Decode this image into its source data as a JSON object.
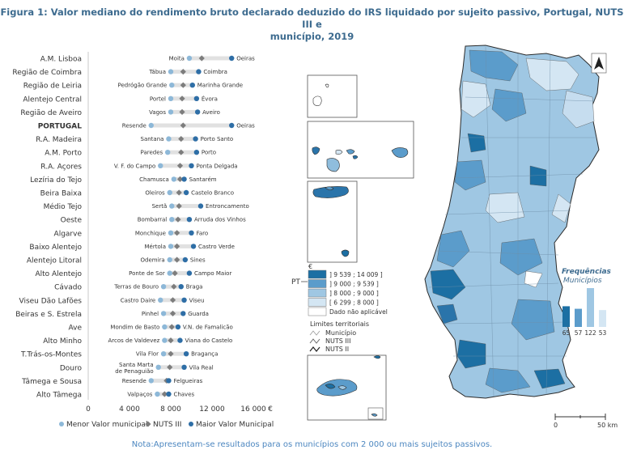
{
  "title": {
    "line1": "Figura 1: Valor mediano do rendimento bruto declarado deduzido do IRS liquidado por sujeito passivo, Portugal, NUTS III e",
    "line2": "município, 2019"
  },
  "note": "Nota:Apresentam-se resultados para os municípios com 2 000 ou mais sujeitos passivos.",
  "chart_data": {
    "type": "scatter",
    "xlim": [
      0,
      16000
    ],
    "xticks": [
      "0",
      "4 000",
      "8 000",
      "12 000",
      "16 000"
    ],
    "x_unit": "€",
    "legend": [
      {
        "name": "Menor Valor municipal",
        "color": "#8db8d8",
        "marker": "circle"
      },
      {
        "name": "NUTS III",
        "color": "#7d7d7d",
        "marker": "diamond"
      },
      {
        "name": "Maior Valor Municipal",
        "color": "#2e6ea6",
        "marker": "circle"
      }
    ],
    "rows": [
      {
        "region": "A.M. Lisboa",
        "min_name": "Moita",
        "min": 9800,
        "nuts": 11000,
        "max": 13900,
        "max_name": "Oeiras",
        "bold": false
      },
      {
        "region": "Região de Coimbra",
        "min_name": "Tábua",
        "min": 8000,
        "nuts": 9200,
        "max": 10700,
        "max_name": "Coimbra",
        "bold": false
      },
      {
        "region": "Região de Leiria",
        "min_name": "Pedrógão Grande",
        "min": 8100,
        "nuts": 9200,
        "max": 10100,
        "max_name": "Marinha Grande",
        "bold": false
      },
      {
        "region": "Alentejo Central",
        "min_name": "Portel",
        "min": 8000,
        "nuts": 9100,
        "max": 10500,
        "max_name": "Évora",
        "bold": false
      },
      {
        "region": "Região de Aveiro",
        "min_name": "Vagos",
        "min": 8000,
        "nuts": 9100,
        "max": 10600,
        "max_name": "Aveiro",
        "bold": false
      },
      {
        "region": "PORTUGAL",
        "min_name": "Resende",
        "min": 6100,
        "nuts": 9200,
        "max": 13900,
        "max_name": "Oeiras",
        "bold": true
      },
      {
        "region": "R.A. Madeira",
        "min_name": "Santana",
        "min": 7800,
        "nuts": 9000,
        "max": 10400,
        "max_name": "Porto Santo",
        "bold": false
      },
      {
        "region": "A.M. Porto",
        "min_name": "Paredes",
        "min": 7700,
        "nuts": 9000,
        "max": 10500,
        "max_name": "Porto",
        "bold": false
      },
      {
        "region": "R.A. Açores",
        "min_name": "V. F. do Campo",
        "min": 7000,
        "nuts": 8900,
        "max": 10000,
        "max_name": "Ponta Delgada",
        "bold": false
      },
      {
        "region": "Lezíria do Tejo",
        "min_name": "Chamusca",
        "min": 8300,
        "nuts": 8900,
        "max": 9300,
        "max_name": "Santarém",
        "bold": false
      },
      {
        "region": "Beira Baixa",
        "min_name": "Oleiros",
        "min": 7900,
        "nuts": 8800,
        "max": 9500,
        "max_name": "Castelo Branco",
        "bold": false
      },
      {
        "region": "Médio Tejo",
        "min_name": "Sertã",
        "min": 8100,
        "nuts": 8800,
        "max": 10900,
        "max_name": "Entroncamento",
        "bold": false
      },
      {
        "region": "Oeste",
        "min_name": "Bombarral",
        "min": 8100,
        "nuts": 8700,
        "max": 9800,
        "max_name": "Arruda dos Vinhos",
        "bold": false
      },
      {
        "region": "Algarve",
        "min_name": "Monchique",
        "min": 8000,
        "nuts": 8600,
        "max": 10000,
        "max_name": "Faro",
        "bold": false
      },
      {
        "region": "Baixo Alentejo",
        "min_name": "Mértola",
        "min": 8000,
        "nuts": 8600,
        "max": 10200,
        "max_name": "Castro Verde",
        "bold": false
      },
      {
        "region": "Alentejo Litoral",
        "min_name": "Odemira",
        "min": 7900,
        "nuts": 8600,
        "max": 9400,
        "max_name": "Sines",
        "bold": false
      },
      {
        "region": "Alto Alentejo",
        "min_name": "Ponte de Sor",
        "min": 7900,
        "nuts": 8400,
        "max": 9800,
        "max_name": "Campo Maior",
        "bold": false
      },
      {
        "region": "Cávado",
        "min_name": "Terras de Bouro",
        "min": 7300,
        "nuts": 8300,
        "max": 9000,
        "max_name": "Braga",
        "bold": false
      },
      {
        "region": "Viseu Dão Lafões",
        "min_name": "Castro Daire",
        "min": 7000,
        "nuts": 8200,
        "max": 9300,
        "max_name": "Viseu",
        "bold": false
      },
      {
        "region": "Beiras e S. Estrela",
        "min_name": "Pinhel",
        "min": 7300,
        "nuts": 8200,
        "max": 9200,
        "max_name": "Guarda",
        "bold": false
      },
      {
        "region": "Ave",
        "min_name": "Mondim de Basto",
        "min": 7400,
        "nuts": 8100,
        "max": 8700,
        "max_name": "V.N. de Famalicão",
        "bold": false
      },
      {
        "region": "Alto Minho",
        "min_name": "Arcos de Valdevez",
        "min": 7400,
        "nuts": 8000,
        "max": 8900,
        "max_name": "Viana do Castelo",
        "bold": false
      },
      {
        "region": "T.Trás-os-Montes",
        "min_name": "Vila Flor",
        "min": 7300,
        "nuts": 8000,
        "max": 9500,
        "max_name": "Bragança",
        "bold": false
      },
      {
        "region": "Douro",
        "min_name": "Santa Marta de Penaguião",
        "min": 6800,
        "nuts": 7900,
        "max": 9300,
        "max_name": "Vila Real",
        "bold": false
      },
      {
        "region": "Tâmega e Sousa",
        "min_name": "Resende",
        "min": 6100,
        "nuts": 7600,
        "max": 7800,
        "max_name": "Felgueiras",
        "bold": false
      },
      {
        "region": "Alto Tâmega",
        "min_name": "Valpaços",
        "min": 6700,
        "nuts": 7400,
        "max": 7800,
        "max_name": "Chaves",
        "bold": false
      }
    ]
  },
  "map": {
    "pt_label": "PT",
    "currency_symbol": "€",
    "classes": [
      {
        "label": "] 9 539 ; 14 009 ]",
        "color": "#1c6fa3"
      },
      {
        "label": "] 9 000 ; 9 539 ]",
        "color": "#5b9ccb"
      },
      {
        "label": "] 8 000 ; 9 000 ]",
        "color": "#9fc7e3"
      },
      {
        "label": "[ 6 299 ; 8 000 ]",
        "color": "#d4e6f3"
      },
      {
        "label": "Dado não aplicável",
        "color": "#ffffff"
      }
    ],
    "limits_title": "Limites territoriais",
    "limits": [
      "Município",
      "NUTS III",
      "NUTS II"
    ],
    "freq_title": "Frequências",
    "freq_subtitle": "Municípios",
    "freq": [
      {
        "value": 65,
        "label": "65",
        "color": "#1c6fa3"
      },
      {
        "value": 57,
        "label": "57",
        "color": "#5b9ccb"
      },
      {
        "value": 122,
        "label": "122",
        "color": "#9fc7e3"
      },
      {
        "value": 53,
        "label": "53",
        "color": "#d4e6f3"
      }
    ],
    "scale_labels": [
      "0",
      "50 km"
    ]
  }
}
